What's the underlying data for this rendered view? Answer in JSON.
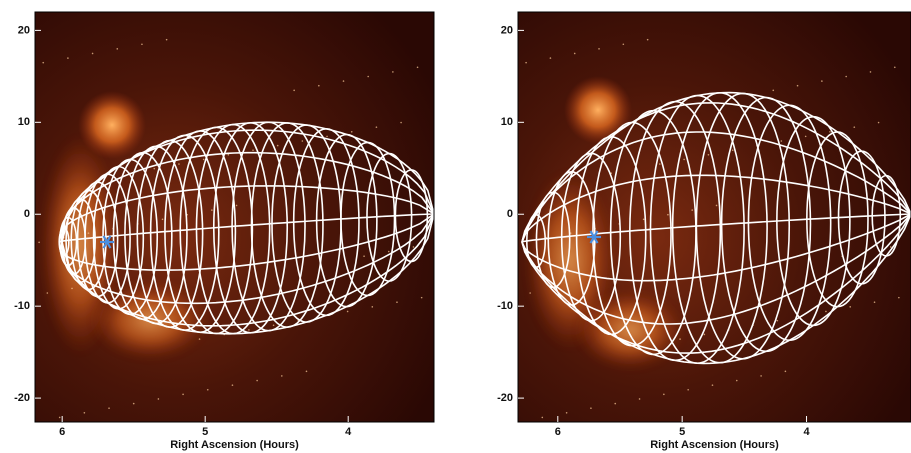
{
  "chart_data": [
    {
      "type": "image",
      "xlabel": "Right Ascension (Hours)",
      "xlim": [
        6.19,
        3.4
      ],
      "ylim": [
        -22.6,
        22
      ],
      "xticks": [
        6,
        5,
        4
      ],
      "yticks": [
        -20,
        -10,
        0,
        10,
        20
      ]
    },
    {
      "type": "image",
      "xlabel": "Right Ascension (Hours)",
      "xlim": [
        6.32,
        3.16
      ],
      "ylim": [
        -22.6,
        22
      ],
      "xticks": [
        6,
        5,
        4
      ],
      "yticks": [
        -20,
        -10,
        0,
        10,
        20
      ]
    }
  ]
}
